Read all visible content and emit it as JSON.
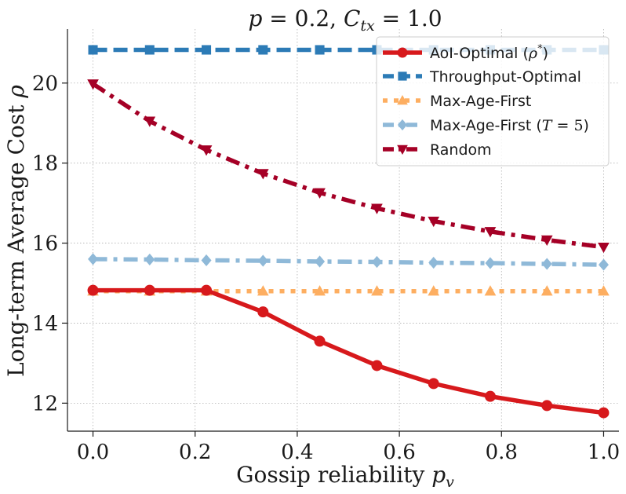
{
  "chart_data": {
    "type": "line",
    "title": "p = 0.2, C_tx = 1.0",
    "title_parts": {
      "p": "p",
      "eq1": " = 0.2, ",
      "c": "C",
      "c_sub": "tx",
      "eq2": " = 1.0"
    },
    "xlabel": "Gossip reliability",
    "xlabel_var": "p",
    "xlabel_sub": "v",
    "ylabel": "Long-term Average Cost",
    "ylabel_var": "ρ",
    "xlim": [
      -0.05,
      1.03
    ],
    "ylim": [
      11.3,
      21.35
    ],
    "x_ticks": [
      0.0,
      0.2,
      0.4,
      0.6,
      0.8,
      1.0
    ],
    "x_tick_labels": [
      "0.0",
      "0.2",
      "0.4",
      "0.6",
      "0.8",
      "1.0"
    ],
    "y_ticks": [
      12,
      14,
      16,
      18,
      20
    ],
    "y_tick_labels": [
      "12",
      "14",
      "16",
      "18",
      "20"
    ],
    "grid": true,
    "legend_position": "top-right",
    "x": [
      0.0,
      0.111,
      0.222,
      0.333,
      0.444,
      0.556,
      0.667,
      0.778,
      0.889,
      1.0
    ],
    "series": [
      {
        "name": "AoI-Optimal (ρ*)",
        "legend_text": "AoI-Optimal (",
        "legend_var": "ρ",
        "legend_sup": "*",
        "legend_close": ")",
        "color": "#d7191c",
        "style": "solid",
        "marker": "circle",
        "values": [
          14.82,
          14.82,
          14.82,
          14.28,
          13.55,
          12.94,
          12.49,
          12.17,
          11.94,
          11.76
        ]
      },
      {
        "name": "Throughput-Optimal",
        "legend_text": "Throughput-Optimal",
        "color": "#2c7bb6",
        "style": "dashed",
        "marker": "square",
        "values": [
          20.83,
          20.83,
          20.83,
          20.83,
          20.83,
          20.83,
          20.83,
          20.83,
          20.83,
          20.83
        ]
      },
      {
        "name": "Max-Age-First",
        "legend_text": "Max-Age-First",
        "color": "#fdae61",
        "style": "dotted",
        "marker": "triangle-up",
        "values": [
          14.8,
          14.8,
          14.8,
          14.8,
          14.8,
          14.8,
          14.8,
          14.8,
          14.8,
          14.8
        ]
      },
      {
        "name": "Max-Age-First (T=5)",
        "legend_text": "Max-Age-First (",
        "legend_var": "T",
        "legend_eq": " = 5",
        "legend_close": ")",
        "color": "#8fb9d8",
        "style": "dashdot",
        "marker": "diamond",
        "values": [
          15.6,
          15.59,
          15.57,
          15.56,
          15.54,
          15.53,
          15.51,
          15.5,
          15.48,
          15.46
        ]
      },
      {
        "name": "Random",
        "legend_text": "Random",
        "color": "#a50026",
        "style": "dashdot",
        "marker": "triangle-down",
        "values": [
          19.98,
          19.05,
          18.33,
          17.74,
          17.26,
          16.87,
          16.55,
          16.29,
          16.08,
          15.9
        ]
      }
    ]
  }
}
